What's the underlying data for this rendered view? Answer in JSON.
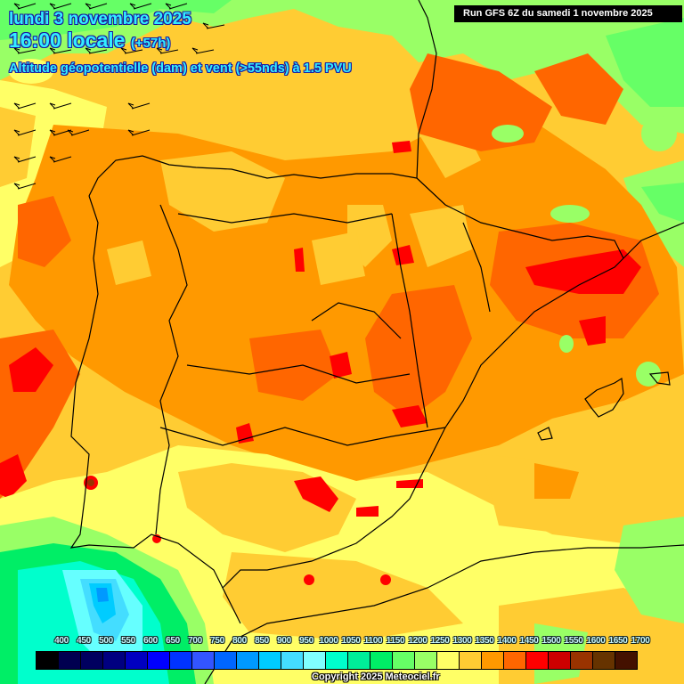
{
  "header": {
    "date": "lundi 3 novembre 2025",
    "time": "16:00 locale",
    "lead": "(+57h)",
    "parameter": "Altitude géopotentielle (dam) et vent (>55nds) à 1.5 PVU",
    "run": "Run GFS 6Z du samedi 1 novembre 2025"
  },
  "footer": {
    "copyright": "Copyright 2025 Meteociel.fr"
  },
  "legend": {
    "unit": "dam",
    "labels": [
      "400",
      "450",
      "500",
      "550",
      "600",
      "650",
      "700",
      "750",
      "800",
      "850",
      "900",
      "950",
      "1000",
      "1050",
      "1100",
      "1150",
      "1200",
      "1250",
      "1300",
      "1350",
      "1400",
      "1450",
      "1500",
      "1550",
      "1600",
      "1650",
      "1700"
    ],
    "colors": [
      "#000000",
      "#000050",
      "#00005f",
      "#000080",
      "#0000c0",
      "#0000ff",
      "#0033ff",
      "#3355ff",
      "#0066ff",
      "#0099ff",
      "#00ccff",
      "#44ddff",
      "#80ffff",
      "#00ffcc",
      "#00ee99",
      "#00ee66",
      "#66ff66",
      "#99ff66",
      "#ffff66",
      "#ffcc33",
      "#ff9900",
      "#ff6600",
      "#ff0000",
      "#cc0000",
      "#993300",
      "#663300",
      "#441100"
    ]
  },
  "map": {
    "region": "Iberian Peninsula, Balearic Islands, SW France, NW Africa",
    "field": "geopotential height at 1.5 PVU",
    "wind_barbs_region": "northwest Atlantic corner",
    "colors": {
      "low_blue": "#3399ff",
      "cyan": "#66ffff",
      "aqua": "#00ffcc",
      "green": "#00ee66",
      "light_green": "#99ff66",
      "yellow": "#ffff66",
      "light_orange": "#ffcc33",
      "orange": "#ff9900",
      "dark_orange": "#ff6600",
      "red": "#ff0000",
      "dark_red": "#cc0000",
      "brown": "#993300",
      "coastline": "#000000"
    }
  }
}
